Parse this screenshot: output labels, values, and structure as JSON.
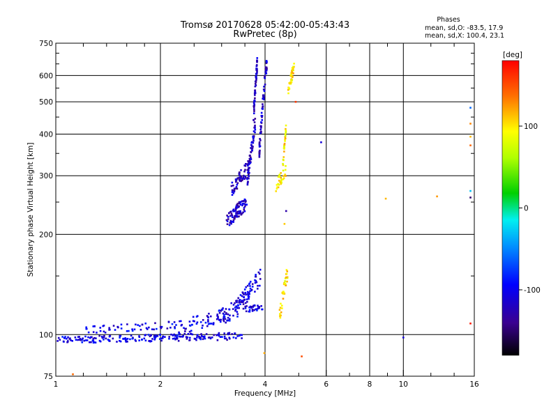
{
  "chart_data": {
    "type": "scatter",
    "title": "Tromsø 20170628 05:42:00-05:43:43",
    "subtitle": "RwPretec (8p)",
    "xlabel": "Frequency [MHz]",
    "ylabel": "Stationary phase Virtual Height [km]",
    "xscale": "log",
    "yscale": "log",
    "xlim": [
      1,
      16
    ],
    "ylim": [
      75,
      750
    ],
    "grid": true,
    "x_ticks": [
      "1",
      "2",
      "4",
      "6",
      "8",
      "10",
      "16"
    ],
    "x_grid": [
      2,
      4,
      6,
      8,
      10
    ],
    "y_ticks": [
      "75",
      "100",
      "200",
      "300",
      "400",
      "500",
      "600",
      "750"
    ],
    "y_grid": [
      100,
      200,
      300,
      400,
      500,
      600
    ],
    "phases_box": {
      "heading": "Phases",
      "line_o": "mean, sd,O: -83.5, 17.9",
      "line_x": "mean, sd,X: 100.4, 23.1"
    },
    "colorbar": {
      "label": "[deg]",
      "range": [
        -180,
        180
      ],
      "ticks": [
        "100",
        "0",
        "-100"
      ],
      "tick_values": [
        100,
        0,
        -100
      ]
    },
    "series": [
      {
        "name": "O-mode low layer (~100 km)",
        "phase": -105,
        "segments": [
          {
            "f0": 1.0,
            "f1": 3.45,
            "h0": 96,
            "h1": 99,
            "n": 220,
            "jit": 0.025
          },
          {
            "f0": 1.2,
            "f1": 2.2,
            "h0": 103,
            "h1": 107,
            "n": 55,
            "jit": 0.025
          },
          {
            "f0": 2.2,
            "f1": 3.1,
            "h0": 104,
            "h1": 115,
            "n": 60,
            "jit": 0.05
          },
          {
            "f0": 2.9,
            "f1": 3.6,
            "h0": 108,
            "h1": 130,
            "n": 60,
            "jit": 0.06
          },
          {
            "f0": 3.3,
            "f1": 3.9,
            "h0": 118,
            "h1": 150,
            "n": 55,
            "jit": 0.06
          },
          {
            "f0": 3.5,
            "f1": 3.95,
            "h0": 119,
            "h1": 121,
            "n": 30,
            "jit": 0.02
          }
        ]
      },
      {
        "name": "O-mode F region trace",
        "phase": -118,
        "segments": [
          {
            "f0": 3.1,
            "f1": 3.55,
            "h0": 218,
            "h1": 250,
            "n": 90,
            "jit": 0.05
          },
          {
            "f0": 3.2,
            "f1": 3.6,
            "h0": 270,
            "h1": 320,
            "n": 60,
            "jit": 0.05
          },
          {
            "f0": 3.55,
            "f1": 3.75,
            "h0": 280,
            "h1": 430,
            "n": 60,
            "jit": 0.05
          },
          {
            "f0": 3.7,
            "f1": 3.8,
            "h0": 440,
            "h1": 650,
            "n": 55,
            "jit": 0.05
          },
          {
            "f0": 3.85,
            "f1": 4.05,
            "h0": 350,
            "h1": 660,
            "n": 75,
            "jit": 0.05
          }
        ]
      },
      {
        "name": "X-mode trace",
        "phase": 100,
        "segments": [
          {
            "f0": 4.4,
            "f1": 4.65,
            "h0": 112,
            "h1": 155,
            "n": 35,
            "jit": 0.05
          },
          {
            "f0": 4.3,
            "f1": 4.6,
            "h0": 280,
            "h1": 310,
            "n": 30,
            "jit": 0.04
          },
          {
            "f0": 4.5,
            "f1": 4.6,
            "h0": 320,
            "h1": 420,
            "n": 25,
            "jit": 0.03
          },
          {
            "f0": 4.65,
            "f1": 4.85,
            "h0": 530,
            "h1": 640,
            "n": 35,
            "jit": 0.04
          }
        ]
      },
      {
        "name": "Scattered returns",
        "points": [
          {
            "f": 3.98,
            "h": 88,
            "phase": 120
          },
          {
            "f": 5.1,
            "h": 86,
            "phase": 150
          },
          {
            "f": 5.8,
            "h": 378,
            "phase": -110
          },
          {
            "f": 8.9,
            "h": 256,
            "phase": 115
          },
          {
            "f": 10.0,
            "h": 98,
            "phase": -110
          },
          {
            "f": 12.5,
            "h": 260,
            "phase": 125
          },
          {
            "f": 15.6,
            "h": 480,
            "phase": -60
          },
          {
            "f": 15.6,
            "h": 430,
            "phase": 130
          },
          {
            "f": 15.6,
            "h": 393,
            "phase": 115
          },
          {
            "f": 15.6,
            "h": 370,
            "phase": 140
          },
          {
            "f": 15.6,
            "h": 270,
            "phase": -30
          },
          {
            "f": 15.6,
            "h": 258,
            "phase": -150
          },
          {
            "f": 15.6,
            "h": 108,
            "phase": 170
          },
          {
            "f": 4.9,
            "h": 500,
            "phase": 160
          },
          {
            "f": 4.6,
            "h": 235,
            "phase": -130
          },
          {
            "f": 4.55,
            "h": 215,
            "phase": 110
          },
          {
            "f": 1.12,
            "h": 76,
            "phase": 140
          }
        ]
      }
    ]
  }
}
